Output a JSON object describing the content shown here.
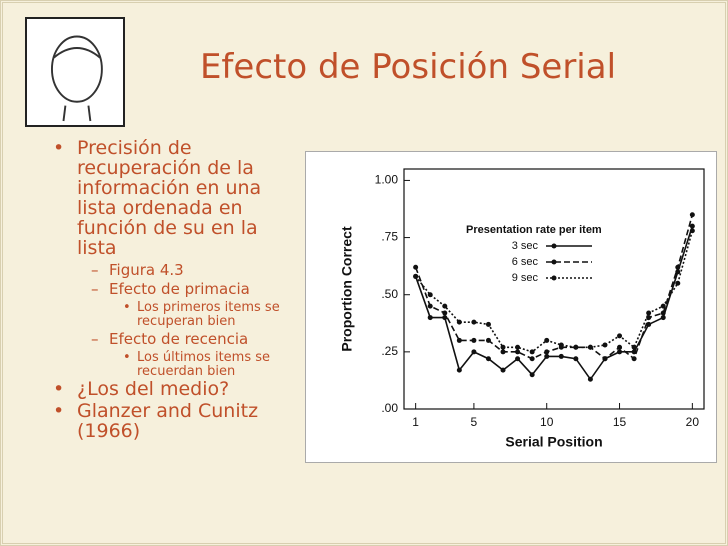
{
  "slide": {
    "title": "Efecto de Posición Serial",
    "bullets": [
      {
        "level": 1,
        "text": "Precisión de recuperación de la información en una lista ordenada en función de su en la lista"
      },
      {
        "level": 2,
        "text": "Figura 4.3"
      },
      {
        "level": 2,
        "text": "Efecto de primacia"
      },
      {
        "level": 3,
        "text": "Los primeros items se recuperan bien"
      },
      {
        "level": 2,
        "text": "Efecto de recencia"
      },
      {
        "level": 3,
        "text": "Los últimos items se recuerdan bien"
      },
      {
        "level": 1,
        "text": "¿Los del medio?"
      },
      {
        "level": 1,
        "text": "Glanzer and Cunitz (1966)"
      }
    ]
  },
  "chart_data": {
    "type": "line",
    "x_label": "Serial Position",
    "y_label": "Proportion Correct",
    "legend_title": "Presentation rate per item",
    "x": [
      1,
      2,
      3,
      4,
      5,
      6,
      7,
      8,
      9,
      10,
      11,
      12,
      13,
      14,
      15,
      16,
      17,
      18,
      19,
      20
    ],
    "series": [
      {
        "name": "3 sec",
        "color": "#111111",
        "dash": "solid",
        "values": [
          0.58,
          0.4,
          0.4,
          0.17,
          0.25,
          0.22,
          0.17,
          0.22,
          0.15,
          0.23,
          0.23,
          0.22,
          0.13,
          0.22,
          0.25,
          0.25,
          0.37,
          0.4,
          0.6,
          0.8
        ]
      },
      {
        "name": "6 sec",
        "color": "#111111",
        "dash": "dashed",
        "values": [
          0.62,
          0.45,
          0.42,
          0.3,
          0.3,
          0.3,
          0.25,
          0.25,
          0.22,
          0.25,
          0.27,
          0.27,
          0.27,
          0.22,
          0.27,
          0.22,
          0.4,
          0.42,
          0.62,
          0.85
        ]
      },
      {
        "name": "9 sec",
        "color": "#111111",
        "dash": "dotted",
        "values": [
          0.58,
          0.5,
          0.45,
          0.38,
          0.38,
          0.37,
          0.27,
          0.27,
          0.25,
          0.3,
          0.28,
          0.27,
          0.27,
          0.28,
          0.32,
          0.27,
          0.42,
          0.45,
          0.55,
          0.78
        ]
      }
    ],
    "xlim": [
      0.2,
      20.8
    ],
    "ylim": [
      0,
      1.05
    ],
    "xticks": [
      1,
      5,
      10,
      15,
      20
    ],
    "yticks": [
      {
        "value": 0,
        "label": ".00"
      },
      {
        "value": 0.25,
        "label": ".25"
      },
      {
        "value": 0.5,
        "label": ".50"
      },
      {
        "value": 0.75,
        "label": ".75"
      },
      {
        "value": 1,
        "label": "1.00"
      }
    ]
  }
}
